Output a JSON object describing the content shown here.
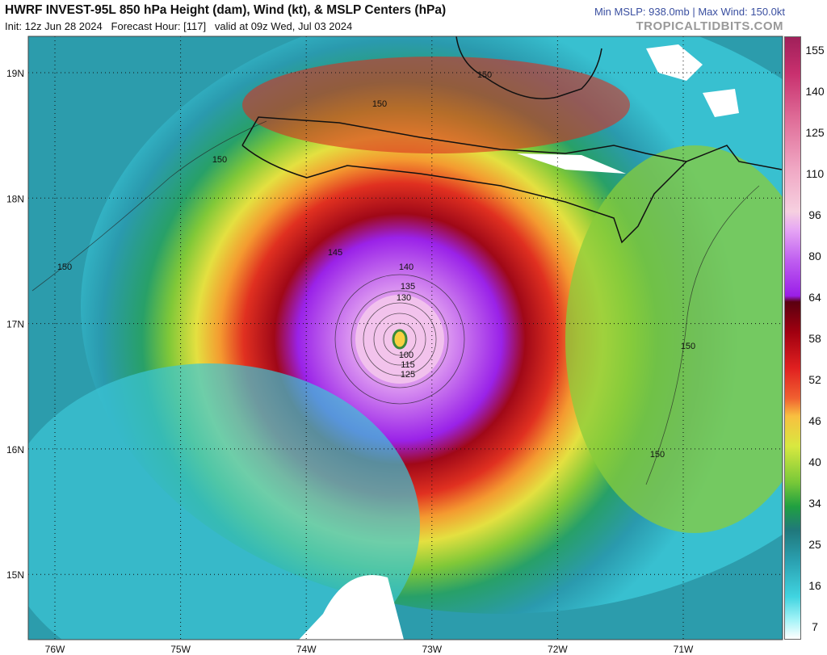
{
  "header": {
    "title": "HWRF INVEST-95L 850 hPa Height (dam), Wind (kt), & MSLP Centers (hPa)",
    "subtitle": "Init: 12z Jun 28 2024   Forecast Hour: [117]   valid at 09z Wed, Jul 03 2024",
    "stats": "Min MSLP: 938.0mb | Max Wind: 150.0kt",
    "source": "TROPICALTIDBITS.COM"
  },
  "map": {
    "lat_labels": [
      "19N",
      "18N",
      "17N",
      "16N",
      "15N"
    ],
    "lon_labels": [
      "76W",
      "75W",
      "74W",
      "73W",
      "72W",
      "71W"
    ],
    "contour_labels": [
      "150",
      "150",
      "150",
      "150",
      "150",
      "150",
      "145",
      "140",
      "135",
      "130",
      "125",
      "115",
      "100"
    ]
  },
  "colorbar": {
    "labels": [
      "155",
      "140",
      "125",
      "110",
      "96",
      "80",
      "64",
      "58",
      "52",
      "46",
      "40",
      "34",
      "25",
      "16",
      "7"
    ]
  }
}
